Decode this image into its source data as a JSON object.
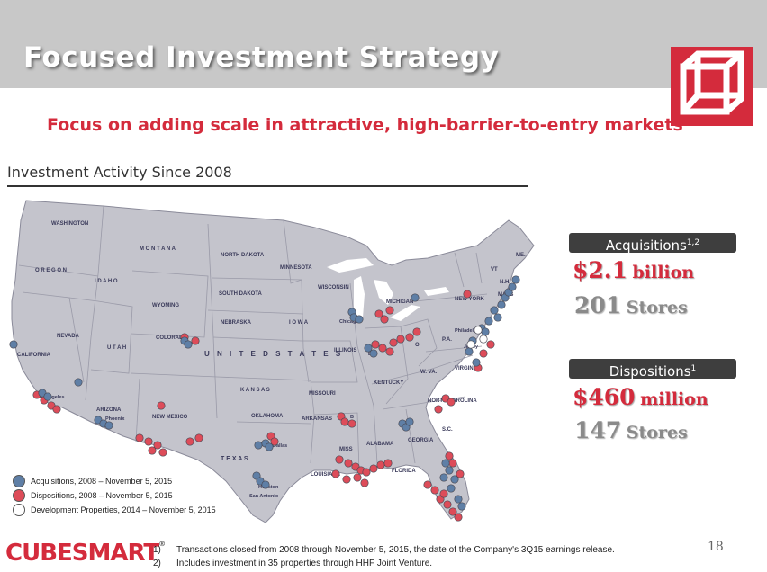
{
  "header": {
    "title": "Focused Investment Strategy",
    "subtitle": "Focus on adding scale in attractive, high-barrier-to-entry markets"
  },
  "section": {
    "title": "Investment Activity Since 2008"
  },
  "map": {
    "country_label": "U N I T E D   S T A T E S",
    "states": {
      "wa": "WASHINGTON",
      "or": "O R E G O N",
      "ca": "CALIFORNIA",
      "nv": "NEVADA",
      "id": "I D A H O",
      "mt": "M O N T A N A",
      "wy": "WYOMING",
      "ut": "U T A H",
      "az": "ARIZONA",
      "co": "COLORADO",
      "nm": "NEW MEXICO",
      "nd": "NORTH DAKOTA",
      "sd": "SOUTH DAKOTA",
      "ne": "NEBRASKA",
      "ks": "K A N S A S",
      "ok": "OKLAHOMA",
      "tx": "T E X A S",
      "mn": "MINNESOTA",
      "ia": "I O W A",
      "mo": "MISSOURI",
      "ar": "ARKANSAS",
      "la": "LOUISIANA",
      "wi": "WISCONSIN",
      "il": "ILLINOIS",
      "mi": "MICHIGAN",
      "ky": "KENTUCKY",
      "ms": "MISS",
      "al": "ALABAMA",
      "ga": "GEORGIA",
      "fl": "FLORIDA",
      "sc": "S.C.",
      "nc": "NORTH CAROLINA",
      "va": "VIRGINIA",
      "wv": "W. VA.",
      "pa": "P.A.",
      "ny": "NEW YORK",
      "vt": "VT",
      "nh": "N.H.",
      "ma": "MASS",
      "me": "ME.",
      "o": "O"
    },
    "cities": {
      "la": "Los Angeles",
      "phx": "Phoenix",
      "chi": "Chicago",
      "phl": "Philadelphia",
      "hou": "Houston",
      "sa": "San Antonio",
      "dal": "Dallas",
      "nj": "Jersey",
      "b1": "B",
      "b2": "Brth"
    },
    "colors": {
      "land": "#c4c4cc",
      "water": "#ffffff",
      "acquisition": "#5f7fa6",
      "disposition": "#dd4c59",
      "development": "#ffffff"
    }
  },
  "legend": {
    "items": [
      {
        "label": "Acquisitions, 2008 – November 5, 2015",
        "color": "#5f7fa6"
      },
      {
        "label": "Dispositions, 2008 – November 5, 2015",
        "color": "#dd4c59"
      },
      {
        "label": "Development Properties, 2014 – November 5, 2015",
        "color": "#ffffff"
      }
    ]
  },
  "acquisitions": {
    "label": "Acquisitions",
    "footnote_marks": "1,2",
    "amount_value": "$2.1",
    "amount_unit": "billion",
    "stores_value": "201",
    "stores_unit": "Stores"
  },
  "dispositions": {
    "label": "Dispositions",
    "footnote_marks": "1",
    "amount_value": "$460",
    "amount_unit": "million",
    "stores_value": "147",
    "stores_unit": "Stores"
  },
  "footer": {
    "brand": "CUBESMART",
    "trademark": "®",
    "footnotes": [
      {
        "num": "1)",
        "text": "Transactions closed from 2008 through November 5, 2015, the date of the Company's 3Q15 earnings release."
      },
      {
        "num": "2)",
        "text": "Includes investment in 35 properties through HHF Joint Venture."
      }
    ],
    "page_number": "18"
  }
}
